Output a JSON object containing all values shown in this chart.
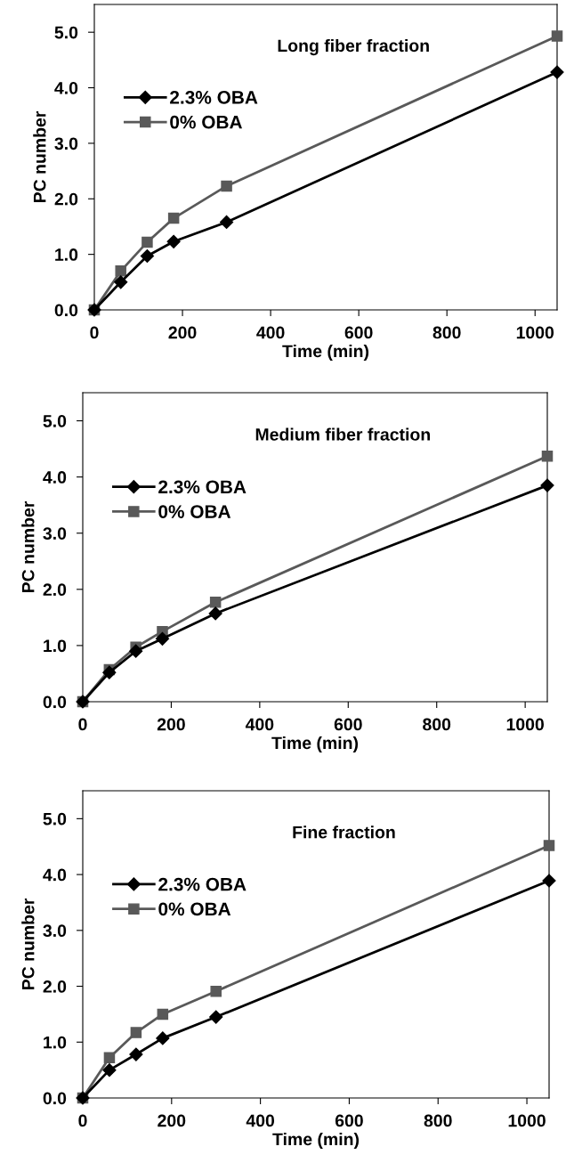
{
  "chart_data": [
    {
      "type": "line",
      "title": "Long fiber fraction",
      "xlabel": "Time (min)",
      "ylabel": "PC number",
      "x": [
        0,
        60,
        120,
        180,
        300,
        1050
      ],
      "xlim": [
        0,
        1050
      ],
      "xticks": [
        0,
        200,
        400,
        600,
        800,
        1000
      ],
      "ylim": [
        0,
        5.5
      ],
      "yticks": [
        {
          "value": 0,
          "label": "0.0"
        },
        {
          "value": 1,
          "label": "1.0"
        },
        {
          "value": 2,
          "label": "2.0"
        },
        {
          "value": 3,
          "label": "3.0"
        },
        {
          "value": 4,
          "label": "4.0"
        },
        {
          "value": 5,
          "label": "5.0"
        }
      ],
      "legend": "left",
      "grid": false,
      "series": [
        {
          "name": "2.3% OBA",
          "color": "#000000",
          "marker": "diamond",
          "values": [
            0,
            0.5,
            0.97,
            1.23,
            1.58,
            4.28
          ]
        },
        {
          "name": "0% OBA",
          "color": "#595959",
          "marker": "square",
          "values": [
            0,
            0.7,
            1.22,
            1.65,
            2.23,
            4.93
          ]
        }
      ]
    },
    {
      "type": "line",
      "title": "Medium fiber fraction",
      "xlabel": "Time (min)",
      "ylabel": "PC number",
      "x": [
        0,
        60,
        120,
        180,
        300,
        1050
      ],
      "xlim": [
        0,
        1050
      ],
      "xticks": [
        0,
        200,
        400,
        600,
        800,
        1000
      ],
      "ylim": [
        0,
        5.5
      ],
      "yticks": [
        {
          "value": 0,
          "label": "0.0"
        },
        {
          "value": 1,
          "label": "1.0"
        },
        {
          "value": 2,
          "label": "2.0"
        },
        {
          "value": 3,
          "label": "3.0"
        },
        {
          "value": 4,
          "label": "4.0"
        },
        {
          "value": 5,
          "label": "5.0"
        }
      ],
      "legend": "left",
      "grid": false,
      "series": [
        {
          "name": "2.3% OBA",
          "color": "#000000",
          "marker": "diamond",
          "values": [
            0,
            0.52,
            0.9,
            1.12,
            1.57,
            3.85
          ]
        },
        {
          "name": "0% OBA",
          "color": "#595959",
          "marker": "square",
          "values": [
            0,
            0.57,
            0.97,
            1.25,
            1.77,
            4.37
          ]
        }
      ]
    },
    {
      "type": "line",
      "title": "Fine fraction",
      "xlabel": "Time (min)",
      "ylabel": "PC number",
      "x": [
        0,
        60,
        120,
        180,
        300,
        1050
      ],
      "xlim": [
        0,
        1050
      ],
      "xticks": [
        0,
        200,
        400,
        600,
        800,
        1000
      ],
      "ylim": [
        0,
        5.5
      ],
      "yticks": [
        {
          "value": 0,
          "label": "0.0"
        },
        {
          "value": 1,
          "label": "1.0"
        },
        {
          "value": 2,
          "label": "2.0"
        },
        {
          "value": 3,
          "label": "3.0"
        },
        {
          "value": 4,
          "label": "4.0"
        },
        {
          "value": 5,
          "label": "5.0"
        }
      ],
      "legend": "left",
      "grid": false,
      "series": [
        {
          "name": "2.3% OBA",
          "color": "#000000",
          "marker": "diamond",
          "values": [
            0,
            0.5,
            0.78,
            1.07,
            1.45,
            3.89
          ]
        },
        {
          "name": "0% OBA",
          "color": "#595959",
          "marker": "square",
          "values": [
            0,
            0.72,
            1.17,
            1.5,
            1.91,
            4.52
          ]
        }
      ]
    }
  ]
}
